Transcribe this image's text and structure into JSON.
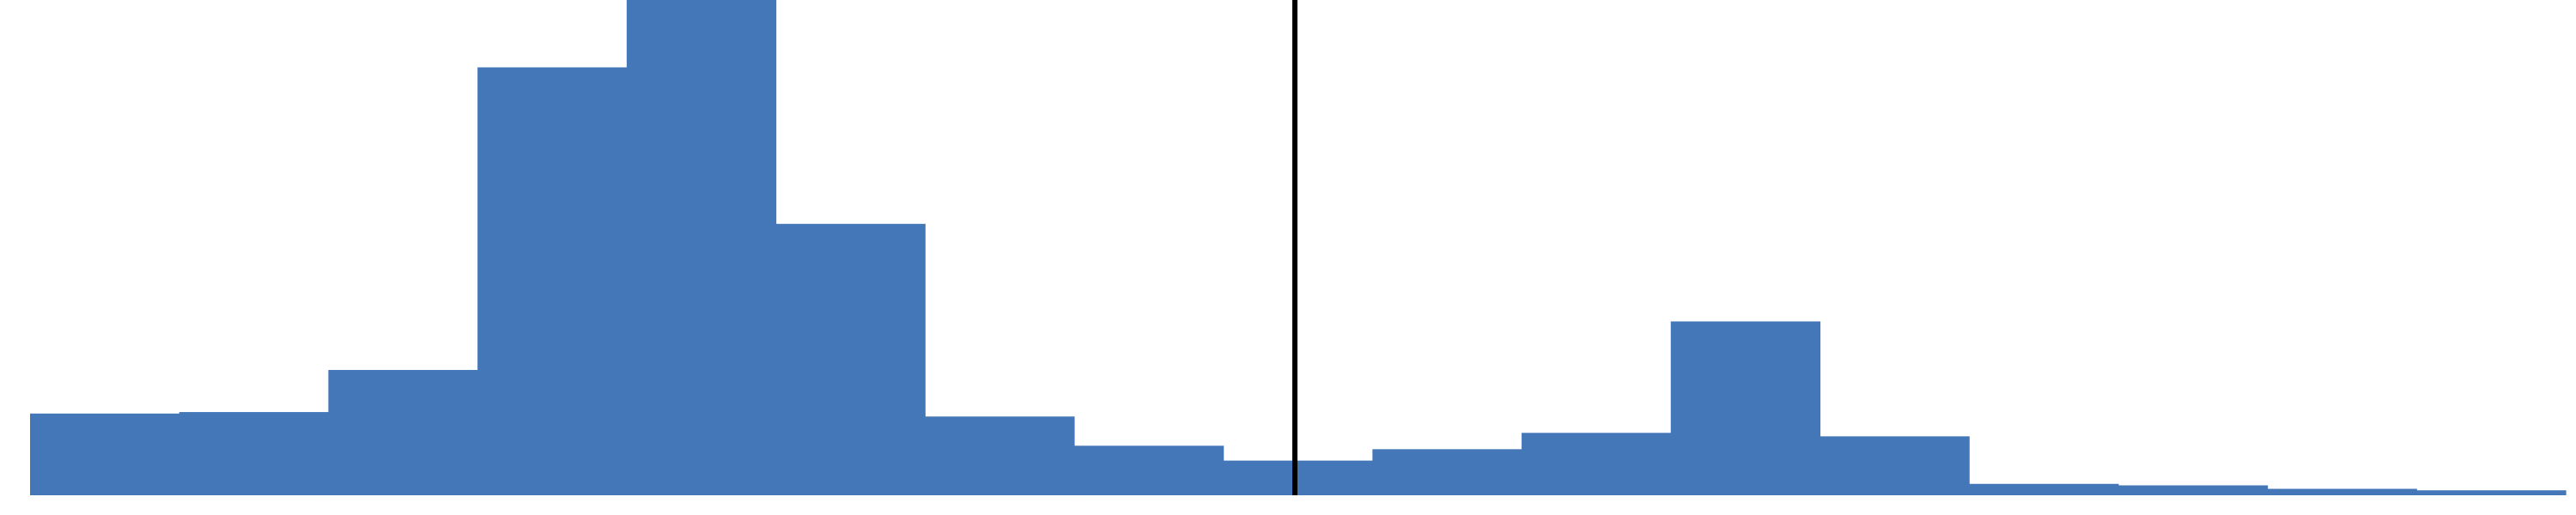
{
  "chart_data": {
    "type": "bar",
    "title": "",
    "xlabel": "",
    "ylabel": "",
    "bar_color": "#4477B8",
    "marker_color": "#000000",
    "ylim": [
      0,
      100
    ],
    "grid": false,
    "legend": "none",
    "bins": [
      {
        "index": 0,
        "value": 16.5
      },
      {
        "index": 1,
        "value": 16.8
      },
      {
        "index": 2,
        "value": 25.3
      },
      {
        "index": 3,
        "value": 86.4
      },
      {
        "index": 4,
        "value": 100.0
      },
      {
        "index": 5,
        "value": 54.8
      },
      {
        "index": 6,
        "value": 15.9
      },
      {
        "index": 7,
        "value": 10.0
      },
      {
        "index": 8,
        "value": 7.0
      },
      {
        "index": 9,
        "value": 9.3
      },
      {
        "index": 10,
        "value": 12.6
      },
      {
        "index": 11,
        "value": 35.1
      },
      {
        "index": 12,
        "value": 11.9
      },
      {
        "index": 13,
        "value": 2.3
      },
      {
        "index": 14,
        "value": 2.0
      },
      {
        "index": 15,
        "value": 1.3
      },
      {
        "index": 16,
        "value": 1.0
      }
    ],
    "marker_position_bins": 8.48
  }
}
